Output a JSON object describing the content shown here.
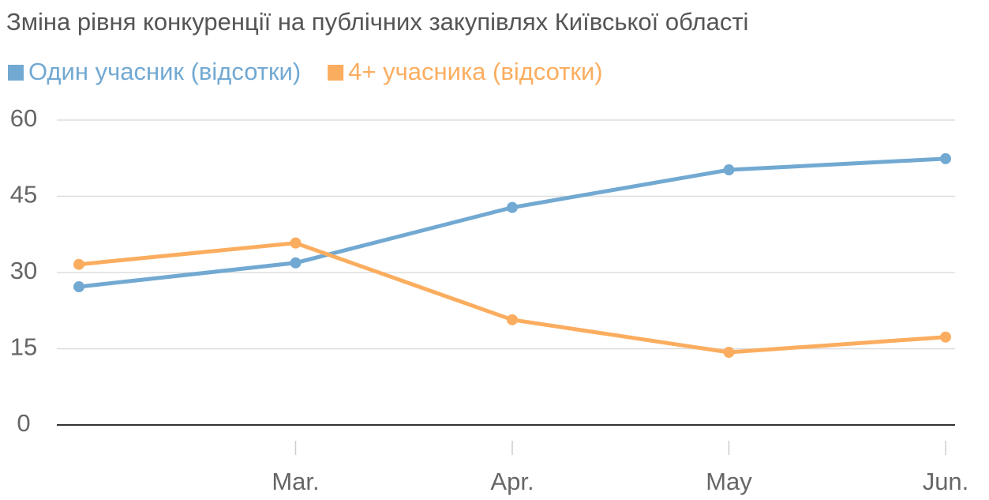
{
  "chart_data": {
    "type": "line",
    "title": "Зміна рівня конкуренції на публічних закупівлях Київської області",
    "categories": [
      null,
      "Mar.",
      "Apr.",
      "May",
      "Jun."
    ],
    "series": [
      {
        "name": "Один учасник (відсотки)",
        "color": "#72a9d2",
        "values": [
          27.2,
          31.9,
          42.8,
          50.2,
          52.4
        ]
      },
      {
        "name": "4+ учасника (відсотки)",
        "color": "#fbad5f",
        "values": [
          31.6,
          35.8,
          20.7,
          14.3,
          17.3
        ]
      }
    ],
    "ylim": [
      0,
      60
    ],
    "yticks": [
      0,
      15,
      30,
      45,
      60
    ],
    "grid": true
  }
}
